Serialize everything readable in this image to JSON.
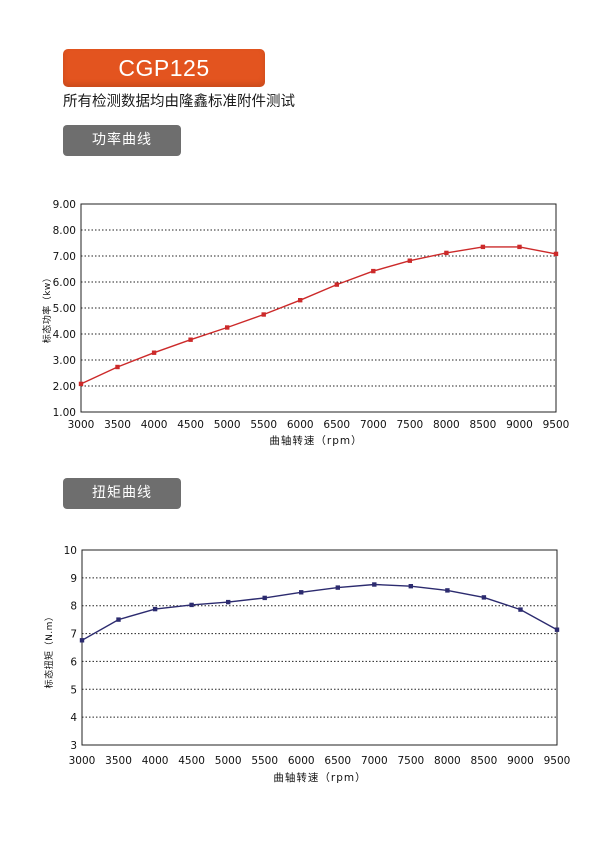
{
  "header": {
    "model": "CGP125",
    "note": "所有检测数据均由隆鑫标准附件测试"
  },
  "colors": {
    "banner": "#e3541f",
    "tab": "#6e6e6e"
  },
  "chart_data": [
    {
      "type": "line",
      "title": "功率曲线",
      "xlabel": "曲轴转速（rpm）",
      "ylabel": "标态功率（kw）",
      "x": [
        3000,
        3500,
        4000,
        4500,
        5000,
        5500,
        6000,
        6500,
        7000,
        7500,
        8000,
        8500,
        9000,
        9500
      ],
      "yticks": [
        "1.00",
        "2.00",
        "3.00",
        "4.00",
        "5.00",
        "6.00",
        "7.00",
        "8.00",
        "9.00"
      ],
      "ylim": [
        1,
        9
      ],
      "xlim": [
        3000,
        9500
      ],
      "grid": true,
      "series": [
        {
          "color": "#cc2a2a",
          "marker": "square",
          "values": [
            2.08,
            2.73,
            3.28,
            3.78,
            4.25,
            4.75,
            5.3,
            5.9,
            6.42,
            6.82,
            7.12,
            7.35,
            7.35,
            7.08
          ]
        }
      ]
    },
    {
      "type": "line",
      "title": "扭矩曲线",
      "xlabel": "曲轴转速（rpm）",
      "ylabel": "标态扭矩（N.m）",
      "x": [
        3000,
        3500,
        4000,
        4500,
        5000,
        5500,
        6000,
        6500,
        7000,
        7500,
        8000,
        8500,
        9000,
        9500
      ],
      "yticks": [
        "3",
        "4",
        "5",
        "6",
        "7",
        "8",
        "9",
        "10"
      ],
      "ylim": [
        3,
        10
      ],
      "xlim": [
        3000,
        9500
      ],
      "grid": true,
      "series": [
        {
          "color": "#2c2b6f",
          "marker": "square",
          "values": [
            6.76,
            7.5,
            7.88,
            8.03,
            8.13,
            8.28,
            8.48,
            8.65,
            8.76,
            8.7,
            8.55,
            8.3,
            7.86,
            7.14
          ]
        }
      ]
    }
  ]
}
